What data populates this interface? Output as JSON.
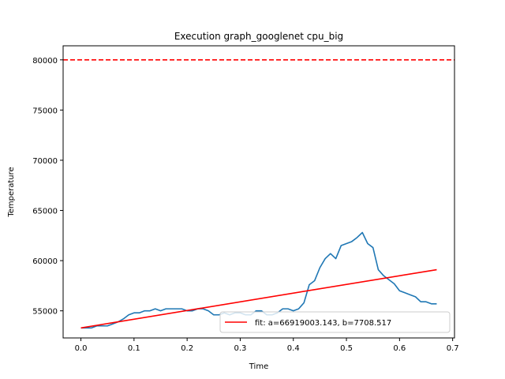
{
  "chart_data": {
    "type": "line",
    "title": "Execution graph_googlenet cpu_big",
    "xlabel": "Time",
    "ylabel": "Temperature",
    "xlim": [
      -0.0335,
      0.7035
    ],
    "ylim": [
      52300,
      81400
    ],
    "xticks": [
      "0.0",
      "0.1",
      "0.2",
      "0.3",
      "0.4",
      "0.5",
      "0.6",
      "0.7"
    ],
    "yticks": [
      "55000",
      "60000",
      "65000",
      "70000",
      "75000",
      "80000"
    ],
    "grid": false,
    "legend_position": "lower-right",
    "series": [
      {
        "kind": "measured",
        "color": "#1f77b4",
        "x": [
          0.0,
          0.01,
          0.02,
          0.03,
          0.04,
          0.05,
          0.06,
          0.07,
          0.08,
          0.09,
          0.1,
          0.11,
          0.12,
          0.13,
          0.14,
          0.15,
          0.16,
          0.17,
          0.18,
          0.19,
          0.2,
          0.21,
          0.22,
          0.23,
          0.24,
          0.25,
          0.26,
          0.27,
          0.28,
          0.29,
          0.3,
          0.31,
          0.32,
          0.33,
          0.34,
          0.35,
          0.36,
          0.37,
          0.38,
          0.39,
          0.4,
          0.41,
          0.42,
          0.43,
          0.44,
          0.45,
          0.46,
          0.47,
          0.48,
          0.49,
          0.5,
          0.51,
          0.52,
          0.53,
          0.54,
          0.55,
          0.56,
          0.57,
          0.58,
          0.59,
          0.6,
          0.61,
          0.62,
          0.63,
          0.64,
          0.65,
          0.66,
          0.67
        ],
        "y": [
          53300,
          53300,
          53300,
          53500,
          53500,
          53500,
          53700,
          53900,
          54200,
          54600,
          54800,
          54800,
          55000,
          55000,
          55200,
          55000,
          55200,
          55200,
          55200,
          55200,
          55000,
          55000,
          55200,
          55200,
          55000,
          54600,
          54600,
          54800,
          54600,
          54800,
          54800,
          54600,
          54600,
          55000,
          55000,
          54600,
          54600,
          54800,
          55200,
          55200,
          55000,
          55200,
          55800,
          57600,
          58000,
          59300,
          60200,
          60700,
          60200,
          61500,
          61700,
          61900,
          62300,
          62800,
          61700,
          61300,
          59100,
          58500,
          58100,
          57700,
          57000,
          56800,
          56600,
          56400,
          55900,
          55900,
          55700,
          55700
        ]
      },
      {
        "kind": "fit",
        "name": "fit: a=66919003.143, b=7708.517",
        "color": "#ff0000",
        "x": [
          0.0,
          0.67
        ],
        "y": [
          53300,
          59100
        ]
      }
    ],
    "reference_lines": [
      {
        "orientation": "horizontal",
        "y": 80000,
        "color": "#ff0000",
        "style": "dashed"
      }
    ]
  }
}
